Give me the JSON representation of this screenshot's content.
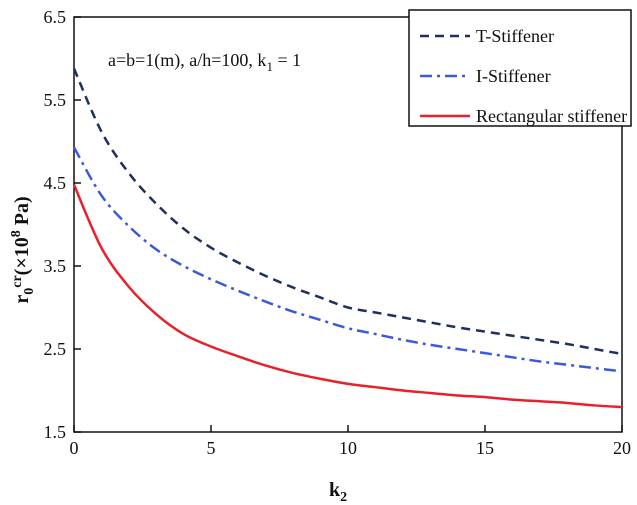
{
  "chart_data": {
    "type": "line",
    "xlabel_main": "k",
    "xlabel_sub": "2",
    "ylabel_main": "r",
    "ylabel_sub": "0",
    "ylabel_sup": "cr",
    "ylabel_unit_pre": "(×10",
    "ylabel_unit_exp": "8",
    "ylabel_unit_post": " Pa)",
    "annotation_pre": "a=b=1(m), a/h=100, k",
    "annotation_sub": "1",
    "annotation_post": " = 1",
    "xlim": [
      0,
      20
    ],
    "ylim": [
      1.5,
      6.5
    ],
    "xticks": [
      0,
      5,
      10,
      15,
      20
    ],
    "yticks": [
      1.5,
      2.5,
      3.5,
      4.5,
      5.5,
      6.5
    ],
    "ytick_labels": [
      "1.5",
      "2.5",
      "3.5",
      "4.5",
      "5.5",
      "6.5"
    ],
    "xtick_labels": [
      "0",
      "5",
      "10",
      "15",
      "20"
    ],
    "grid": false,
    "legend_position": "top-right",
    "series": [
      {
        "name": "T-Stiffener",
        "color": "#1f2f5e",
        "style": "dashed",
        "x": [
          0,
          1,
          2,
          3,
          4,
          5,
          6,
          7,
          8,
          9,
          10,
          11,
          12,
          13,
          14,
          15,
          16,
          17,
          18,
          19,
          20
        ],
        "y": [
          5.88,
          5.12,
          4.62,
          4.25,
          3.95,
          3.72,
          3.54,
          3.38,
          3.24,
          3.12,
          3.0,
          2.94,
          2.88,
          2.82,
          2.76,
          2.71,
          2.66,
          2.61,
          2.56,
          2.5,
          2.44
        ]
      },
      {
        "name": "I-Stiffener",
        "color": "#3a5bd9",
        "style": "dashdot",
        "x": [
          0,
          1,
          2,
          3,
          4,
          5,
          6,
          7,
          8,
          9,
          10,
          11,
          12,
          13,
          14,
          15,
          16,
          17,
          18,
          19,
          20
        ],
        "y": [
          4.93,
          4.35,
          3.98,
          3.7,
          3.5,
          3.34,
          3.2,
          3.07,
          2.95,
          2.85,
          2.75,
          2.68,
          2.61,
          2.55,
          2.5,
          2.45,
          2.4,
          2.35,
          2.31,
          2.27,
          2.23
        ]
      },
      {
        "name": "Rectangular stiffener",
        "color": "#e8202a",
        "style": "solid",
        "x": [
          0,
          1,
          2,
          3,
          4,
          5,
          6,
          7,
          8,
          9,
          10,
          11,
          12,
          13,
          14,
          15,
          16,
          17,
          18,
          19,
          20
        ],
        "y": [
          4.48,
          3.72,
          3.25,
          2.92,
          2.68,
          2.53,
          2.41,
          2.3,
          2.21,
          2.14,
          2.08,
          2.04,
          2.0,
          1.97,
          1.94,
          1.92,
          1.89,
          1.87,
          1.85,
          1.82,
          1.8
        ]
      }
    ]
  }
}
